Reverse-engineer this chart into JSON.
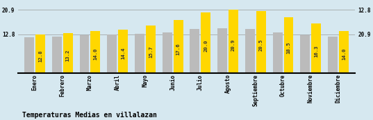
{
  "categories": [
    "Enero",
    "Febrero",
    "Marzo",
    "Abril",
    "Mayo",
    "Junio",
    "Julio",
    "Agosto",
    "Septiembre",
    "Octubre",
    "Noviembre",
    "Diciembre"
  ],
  "values": [
    12.8,
    13.2,
    14.0,
    14.4,
    15.7,
    17.6,
    20.0,
    20.9,
    20.5,
    18.5,
    16.3,
    14.0
  ],
  "gray_values": [
    11.8,
    12.0,
    12.5,
    12.8,
    13.0,
    13.5,
    14.5,
    14.8,
    14.5,
    13.5,
    12.5,
    12.0
  ],
  "bar_color_yellow": "#FFD700",
  "bar_color_gray": "#BBBBBB",
  "background_color": "#D6E8F0",
  "title": "Temperaturas Medias en villalazan",
  "ylim_min": 0.0,
  "ylim_max": 23.5,
  "ytick_vals": [
    12.8,
    20.9
  ],
  "ytick_labels": [
    "12.8",
    "20.9"
  ],
  "label_fontsize": 5.5,
  "title_fontsize": 7,
  "value_fontsize": 5.2,
  "right_ytick_labels": [
    "20.9",
    "12.8"
  ]
}
